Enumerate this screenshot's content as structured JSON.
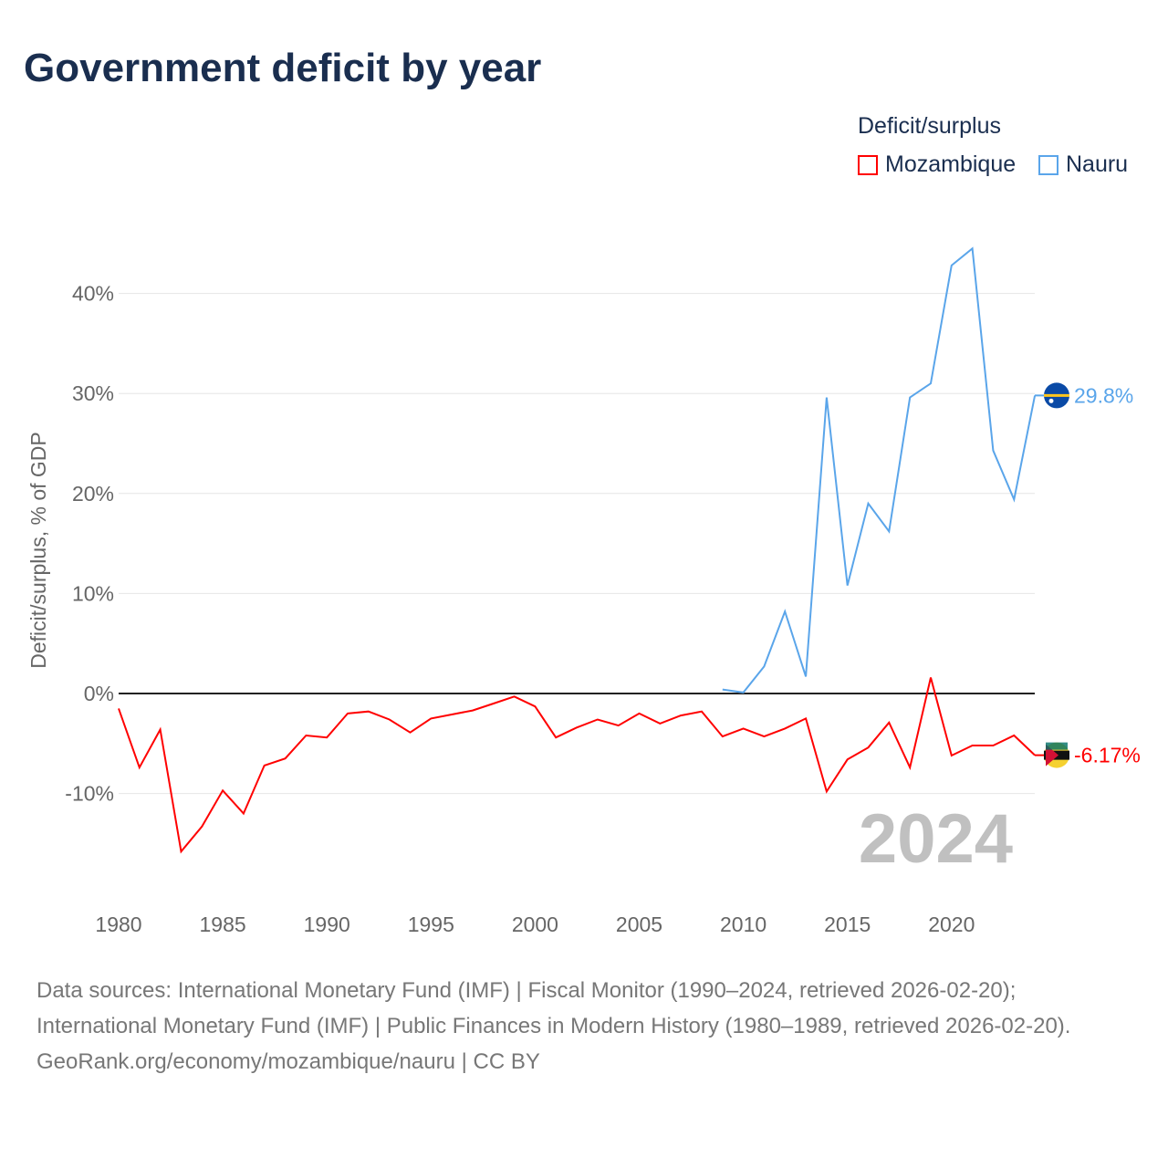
{
  "title": "Government deficit by year",
  "legend": {
    "title": "Deficit/surplus",
    "items": [
      {
        "name": "Mozambique",
        "color": "#ff0000"
      },
      {
        "name": "Nauru",
        "color": "#5aa5ea"
      }
    ]
  },
  "year_watermark": "2024",
  "sources": "Data sources: International Monetary Fund (IMF) | Fiscal Monitor (1990–2024, retrieved 2026-02-20); International Monetary Fund (IMF) | Public Finances in Modern History (1980–1989, retrieved 2026-02-20).",
  "footer": "GeoRank.org/economy/mozambique/nauru | CC BY",
  "chart_data": {
    "type": "line",
    "title": "Government deficit by year",
    "xlabel": "",
    "ylabel": "Deficit/surplus, % of GDP",
    "xlim": [
      1980,
      2024
    ],
    "ylim": [
      -18,
      45
    ],
    "x_ticks": [
      1980,
      1985,
      1990,
      1995,
      2000,
      2005,
      2010,
      2015,
      2020
    ],
    "y_ticks": [
      {
        "v": 40,
        "label": "40%"
      },
      {
        "v": 30,
        "label": "30%"
      },
      {
        "v": 20,
        "label": "20%"
      },
      {
        "v": 10,
        "label": "10%"
      },
      {
        "v": 0,
        "label": "0%"
      },
      {
        "v": -10,
        "label": "-10%"
      }
    ],
    "grid": true,
    "legend_position": "top-right",
    "series": [
      {
        "name": "Mozambique",
        "color": "#ff0000",
        "end_label": "-6.17%",
        "start_year": 1980,
        "values": [
          -1.5,
          -7.4,
          -3.6,
          -15.8,
          -13.3,
          -9.7,
          -12.0,
          -7.2,
          -6.5,
          -4.2,
          -4.4,
          -2.0,
          -1.8,
          -2.6,
          -3.9,
          -2.5,
          -2.1,
          -1.7,
          -1.0,
          -0.3,
          -1.3,
          -4.4,
          -3.4,
          -2.6,
          -3.2,
          -2.0,
          -3.0,
          -2.2,
          -1.8,
          -4.3,
          -3.5,
          -4.3,
          -3.5,
          -2.5,
          -9.8,
          -6.6,
          -5.4,
          -2.9,
          -7.4,
          1.6,
          -6.2,
          -5.2,
          -5.2,
          -4.2,
          -6.17
        ]
      },
      {
        "name": "Nauru",
        "color": "#5aa5ea",
        "end_label": "29.8%",
        "start_year": 2009,
        "values": [
          0.4,
          0.1,
          2.7,
          8.2,
          1.7,
          29.6,
          10.8,
          19.0,
          16.2,
          29.6,
          31.0,
          42.8,
          44.5,
          24.3,
          19.4,
          29.8
        ]
      }
    ]
  }
}
